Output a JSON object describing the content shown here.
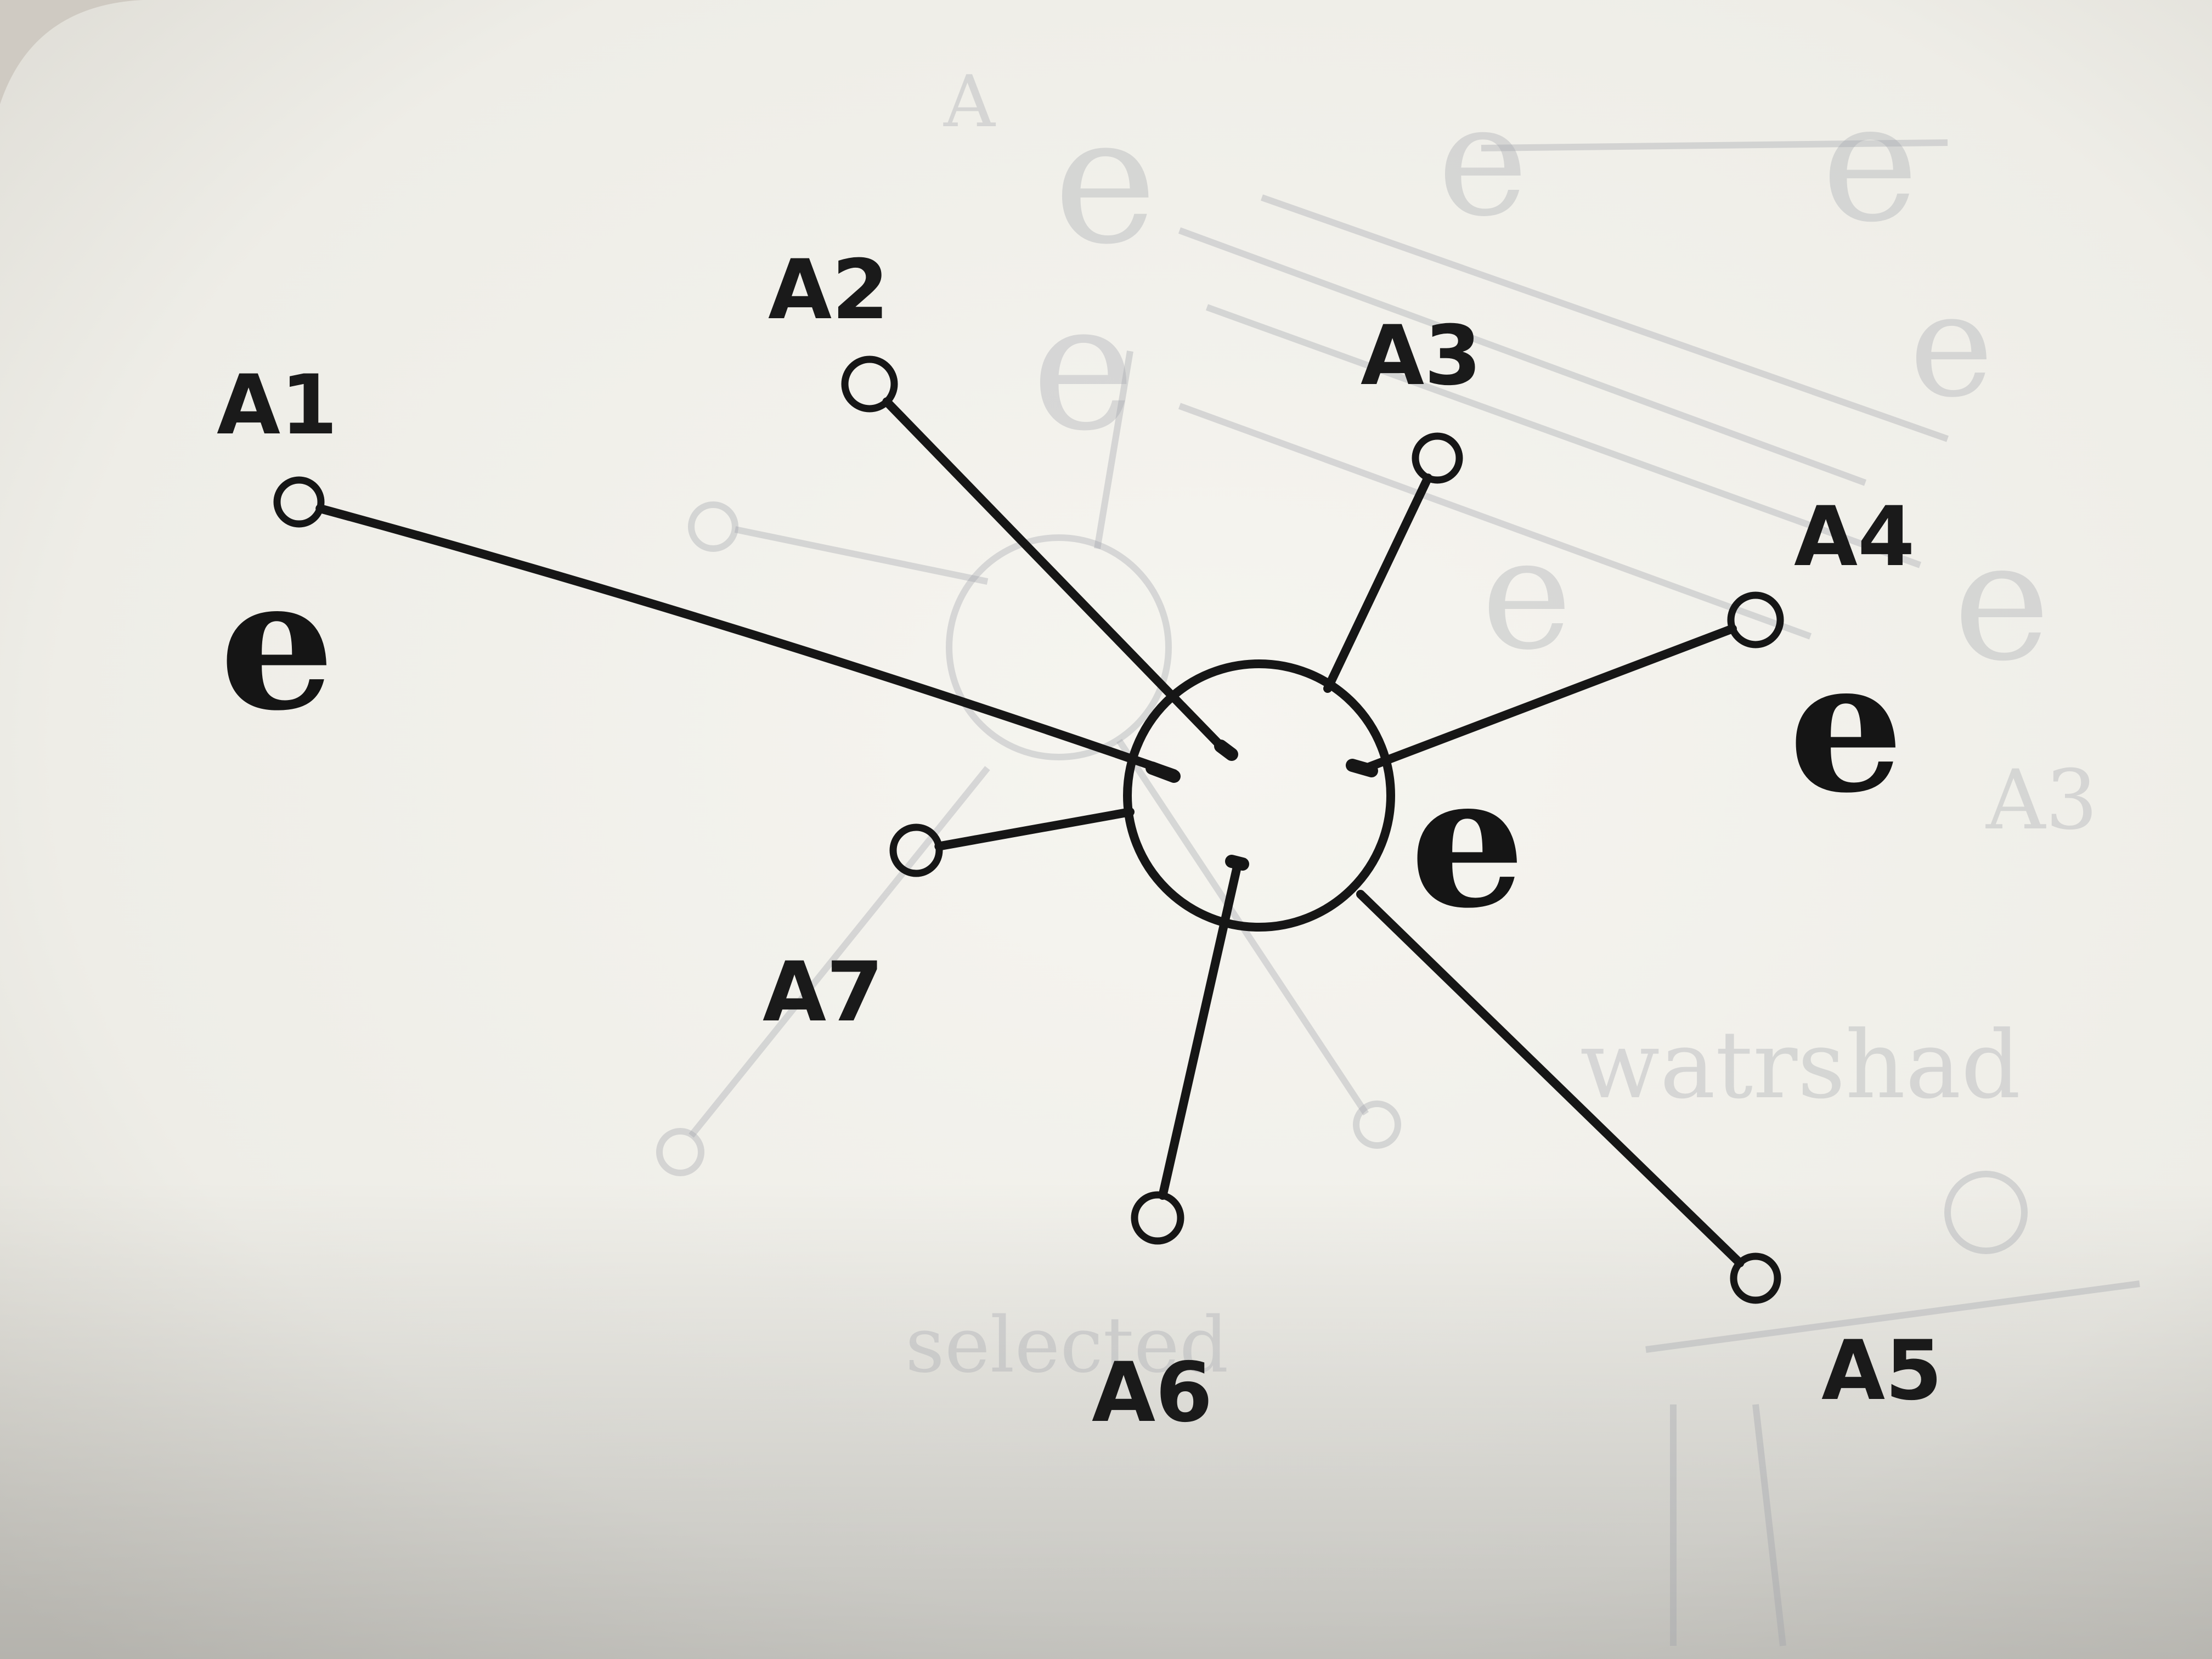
{
  "diagram": {
    "hub_label": "e",
    "nodes": [
      {
        "id": "A1",
        "label": "A1",
        "has_e": true
      },
      {
        "id": "A2",
        "label": "A2",
        "has_e": false
      },
      {
        "id": "A3",
        "label": "A3",
        "has_e": false
      },
      {
        "id": "A4",
        "label": "A4",
        "has_e": true
      },
      {
        "id": "A5",
        "label": "A5",
        "has_e": false
      },
      {
        "id": "A6",
        "label": "A6",
        "has_e": false
      },
      {
        "id": "A7",
        "label": "A7",
        "has_e": false
      }
    ],
    "edges": [
      {
        "from": "hub",
        "to": "A1"
      },
      {
        "from": "hub",
        "to": "A2"
      },
      {
        "from": "hub",
        "to": "A3"
      },
      {
        "from": "hub",
        "to": "A4"
      },
      {
        "from": "hub",
        "to": "A5"
      },
      {
        "from": "hub",
        "to": "A6"
      },
      {
        "from": "hub",
        "to": "A7"
      }
    ],
    "e_symbol": "e"
  },
  "colors": {
    "ink": "#161616",
    "paper": "#f4f3ee",
    "bleed_through": "#a4a7ae"
  }
}
